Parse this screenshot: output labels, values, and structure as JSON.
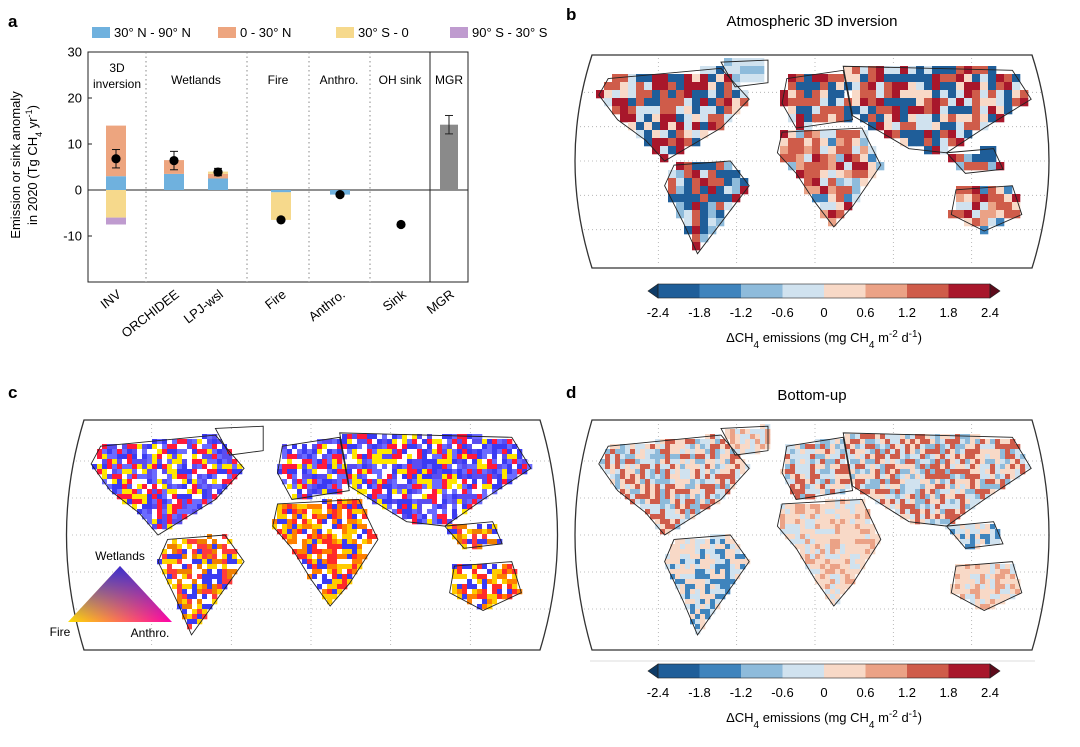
{
  "panels": {
    "a": {
      "letter": "a",
      "ylabel_line1": "Emission or sink anomaly",
      "ylabel_line2": "in 2020 (Tg CH",
      "ylabel_sub": "4",
      "ylabel_unit": " yr",
      "ylabel_sup": "-1",
      "ylabel_close": ")",
      "legend": [
        {
          "name": "30° N - 90° N",
          "color": "#6fb1de"
        },
        {
          "name": "0 - 30° N",
          "color": "#eda57f"
        },
        {
          "name": "30° S - 0",
          "color": "#f6d98c"
        },
        {
          "name": "90° S - 30° S",
          "color": "#bf9bcf"
        }
      ],
      "groups": [
        {
          "label": "3D\ninversion"
        },
        {
          "label": "Wetlands"
        },
        {
          "label": "Fire"
        },
        {
          "label": "Anthro."
        },
        {
          "label": "OH sink"
        },
        {
          "label": "MGR"
        }
      ],
      "xticks": [
        "INV",
        "ORCHIDEE",
        "LPJ-wsl",
        "Fire",
        "Anthro.",
        "Sink",
        "MGR"
      ]
    },
    "b": {
      "letter": "b",
      "title": "Atmospheric 3D inversion"
    },
    "c": {
      "letter": "c",
      "triangle": {
        "top": "Wetlands",
        "left": "Fire",
        "right": "Anthro."
      }
    },
    "d": {
      "letter": "d",
      "title": "Bottom-up"
    },
    "colorbar": {
      "ticks": [
        "-2.4",
        "-1.8",
        "-1.2",
        "-0.6",
        "0",
        "0.6",
        "1.2",
        "1.8",
        "2.4"
      ],
      "colors": [
        "#1f5e99",
        "#3f84bd",
        "#8ebbdb",
        "#d0e2ef",
        "#f8d9c7",
        "#eba286",
        "#cf5c4a",
        "#a8172b"
      ],
      "label_pre": "ΔCH",
      "label_sub": "4",
      "label_mid": " emissions (mg CH",
      "label_sub2": "4",
      "label_m": " m",
      "label_sup": "-2",
      "label_d": " d",
      "label_sup2": "-1",
      "label_close": ")"
    }
  },
  "chart_data": {
    "type": "bar",
    "categories": [
      "INV",
      "ORCHIDEE",
      "LPJ-wsl",
      "Fire",
      "Anthro.",
      "Sink",
      "MGR"
    ],
    "ylim": [
      -20,
      30
    ],
    "yticks": [
      -10,
      0,
      10,
      20,
      30
    ],
    "stacked": [
      {
        "name": "30° N - 90° N",
        "values": [
          3.0,
          3.5,
          2.5,
          -0.5,
          -1.0,
          0,
          0
        ]
      },
      {
        "name": "0 - 30° N",
        "values": [
          11.0,
          3.0,
          1.0,
          0,
          0,
          0,
          0
        ]
      },
      {
        "name": "30° S - 0",
        "values": [
          -6.0,
          0,
          0.5,
          -6.0,
          0,
          0,
          0
        ]
      },
      {
        "name": "90° S - 30° S",
        "values": [
          -1.5,
          0,
          0,
          0,
          0,
          0,
          0
        ]
      }
    ],
    "totals": {
      "values": [
        6.8,
        6.4,
        3.9,
        -6.5,
        -1.0,
        -7.5,
        null
      ],
      "errors": [
        2.0,
        2.0,
        0.8,
        0,
        0,
        0,
        null
      ]
    },
    "mgr": {
      "value": 14.2,
      "error": 2.0,
      "color": "#8a8a8a"
    }
  }
}
